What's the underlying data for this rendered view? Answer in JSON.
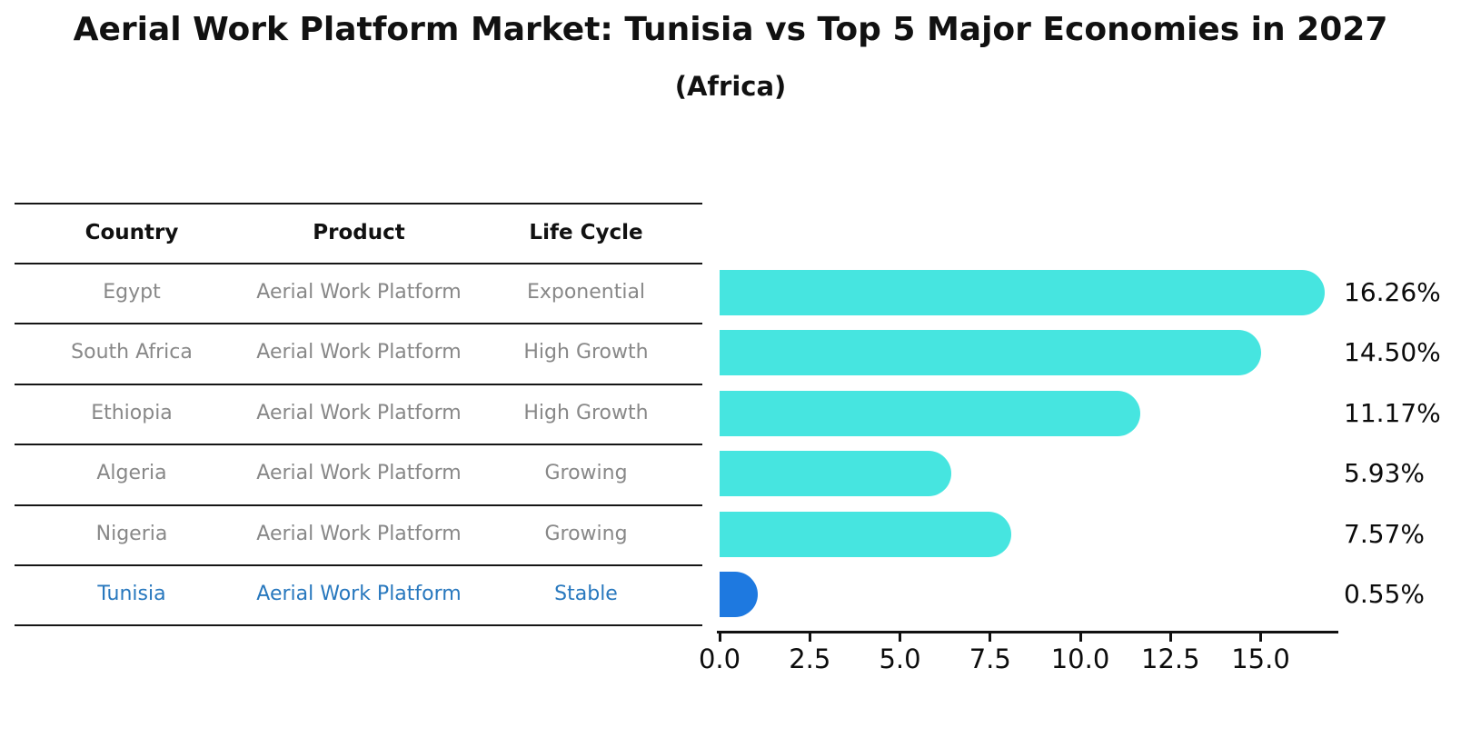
{
  "title": "Aerial Work Platform Market: Tunisia vs Top 5 Major Economies in 2027",
  "subtitle": "(Africa)",
  "table": {
    "headers": [
      "Country",
      "Product",
      "Life Cycle"
    ],
    "rows": [
      {
        "country": "Egypt",
        "product": "Aerial Work Platform",
        "life_cycle": "Exponential",
        "highlight": false
      },
      {
        "country": "South Africa",
        "product": "Aerial Work Platform",
        "life_cycle": "High Growth",
        "highlight": false
      },
      {
        "country": "Ethiopia",
        "product": "Aerial Work Platform",
        "life_cycle": "High Growth",
        "highlight": false
      },
      {
        "country": "Algeria",
        "product": "Aerial Work Platform",
        "life_cycle": "Growing",
        "highlight": false
      },
      {
        "country": "Nigeria",
        "product": "Aerial Work Platform",
        "life_cycle": "Growing",
        "highlight": false
      },
      {
        "country": "Tunisia",
        "product": "Aerial Work Platform",
        "life_cycle": "Stable",
        "highlight": true
      }
    ]
  },
  "chart_data": {
    "type": "bar",
    "orientation": "horizontal",
    "title": "Aerial Work Platform Market: Tunisia vs Top 5 Major Economies in 2027",
    "subtitle": "(Africa)",
    "categories": [
      "Egypt",
      "South Africa",
      "Ethiopia",
      "Algeria",
      "Nigeria",
      "Tunisia"
    ],
    "values": [
      16.26,
      14.5,
      11.17,
      5.93,
      7.57,
      0.55
    ],
    "value_labels": [
      "16.26%",
      "14.50%",
      "11.17%",
      "5.93%",
      "7.57%",
      "0.55%"
    ],
    "xlabel": "",
    "ylabel": "",
    "xlim": [
      0,
      17
    ],
    "xticks": [
      0.0,
      2.5,
      5.0,
      7.5,
      10.0,
      12.5,
      15.0
    ],
    "xtick_labels": [
      "0.0",
      "2.5",
      "5.0",
      "7.5",
      "10.0",
      "12.5",
      "15.0"
    ],
    "grid": false,
    "legend": false,
    "bar_color": "#46e5e0",
    "highlight_color": "#1e79e0",
    "highlight_index": 5,
    "highlight_text_color": "#2878be"
  }
}
